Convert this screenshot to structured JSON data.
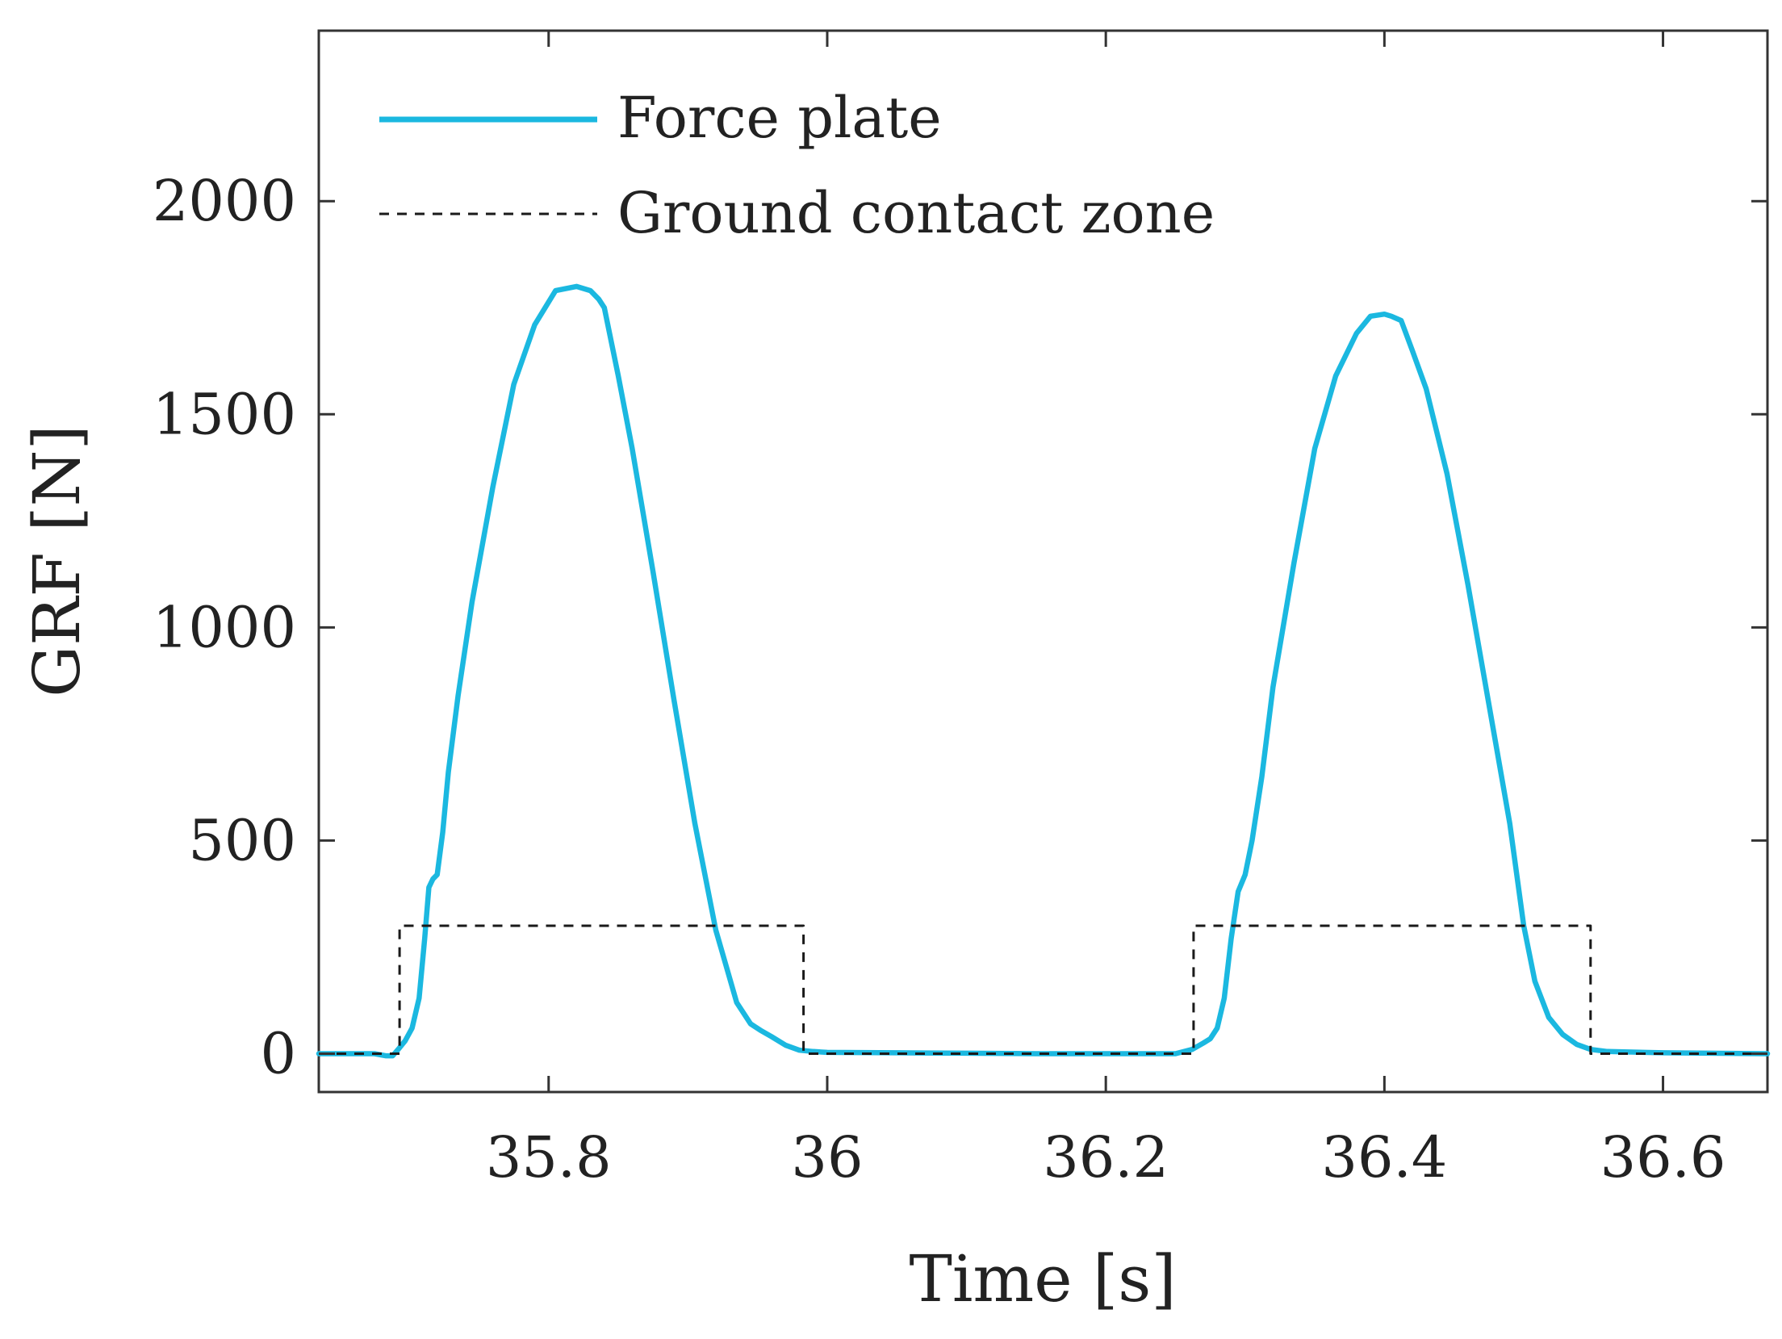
{
  "chart_data": {
    "type": "line",
    "title": "",
    "xlabel": "Time [s]",
    "ylabel": "GRF [N]",
    "xlim": [
      35.635,
      36.675
    ],
    "ylim": [
      -90,
      2400
    ],
    "xticks": [
      35.8,
      36.0,
      36.2,
      36.4,
      36.6
    ],
    "xtick_labels": [
      "35.8",
      "36",
      "36.2",
      "36.4",
      "36.6"
    ],
    "yticks": [
      0,
      500,
      1000,
      1500,
      2000
    ],
    "ytick_labels": [
      "0",
      "500",
      "1000",
      "1500",
      "2000"
    ],
    "grid": false,
    "legend_position": "top-left",
    "legend": [
      "Force  plate",
      "Ground contact zone"
    ],
    "series": [
      {
        "name": "Force  plate",
        "color": "#1bb8e0",
        "style": "solid",
        "x": [
          35.635,
          35.65,
          35.665,
          35.675,
          35.683,
          35.688,
          35.692,
          35.697,
          35.702,
          35.707,
          35.711,
          35.714,
          35.717,
          35.72,
          35.724,
          35.728,
          35.735,
          35.745,
          35.76,
          35.775,
          35.79,
          35.805,
          35.82,
          35.83,
          35.836,
          35.84,
          35.85,
          35.86,
          35.875,
          35.89,
          35.905,
          35.92,
          35.935,
          35.945,
          35.952,
          35.96,
          35.97,
          35.98,
          35.99,
          36.0,
          36.05,
          36.1,
          36.15,
          36.2,
          36.25,
          36.262,
          36.27,
          36.275,
          36.28,
          36.285,
          36.29,
          36.295,
          36.3,
          36.305,
          36.312,
          36.32,
          36.335,
          36.35,
          36.365,
          36.38,
          36.39,
          36.4,
          36.405,
          36.412,
          36.42,
          36.43,
          36.445,
          36.46,
          36.475,
          36.49,
          36.5,
          36.508,
          36.518,
          36.528,
          36.538,
          36.548,
          36.56,
          36.6,
          36.675
        ],
        "values": [
          0,
          0,
          0,
          0,
          -5,
          -5,
          10,
          30,
          60,
          130,
          270,
          390,
          410,
          420,
          520,
          660,
          840,
          1060,
          1330,
          1570,
          1710,
          1790,
          1800,
          1790,
          1770,
          1750,
          1590,
          1420,
          1130,
          830,
          540,
          290,
          120,
          70,
          55,
          40,
          20,
          8,
          5,
          3,
          2,
          1,
          0,
          0,
          0,
          10,
          25,
          35,
          60,
          130,
          270,
          380,
          420,
          500,
          650,
          860,
          1150,
          1420,
          1590,
          1690,
          1730,
          1735,
          1730,
          1720,
          1650,
          1560,
          1360,
          1100,
          820,
          540,
          300,
          170,
          85,
          45,
          22,
          10,
          5,
          2,
          0
        ]
      },
      {
        "name": "Ground contact zone",
        "color": "#1a1a1a",
        "style": "dashed",
        "x": [
          35.635,
          35.693,
          35.693,
          35.983,
          35.983,
          36.263,
          36.263,
          36.548,
          36.548,
          36.675
        ],
        "values": [
          0,
          0,
          300,
          300,
          0,
          0,
          300,
          300,
          0,
          0
        ]
      }
    ]
  }
}
